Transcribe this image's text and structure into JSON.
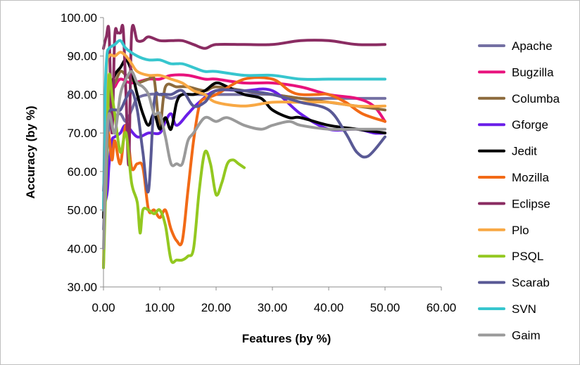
{
  "chart_data": {
    "type": "line",
    "title": "",
    "xlabel": "Features (by %)",
    "ylabel": "Accuracy (by %)",
    "xlim": [
      0,
      60
    ],
    "ylim": [
      30,
      100
    ],
    "xticks": [
      "0.00",
      "10.00",
      "20.00",
      "30.00",
      "40.00",
      "50.00",
      "60.00"
    ],
    "yticks": [
      "30.00",
      "40.00",
      "50.00",
      "60.00",
      "70.00",
      "80.00",
      "90.00",
      "100.00"
    ],
    "grid": false,
    "legend": "right",
    "series": [
      {
        "name": "Apache",
        "color": "#7470a3",
        "points": [
          [
            0,
            45
          ],
          [
            0.5,
            60
          ],
          [
            1,
            72
          ],
          [
            2,
            74
          ],
          [
            3,
            75
          ],
          [
            4,
            73
          ],
          [
            5,
            76
          ],
          [
            6,
            79
          ],
          [
            8,
            80
          ],
          [
            10,
            80
          ],
          [
            12,
            79
          ],
          [
            14,
            80
          ],
          [
            16,
            80
          ],
          [
            18,
            80
          ],
          [
            20,
            80
          ],
          [
            25,
            80
          ],
          [
            30,
            80
          ],
          [
            35,
            79
          ],
          [
            40,
            79
          ],
          [
            45,
            79
          ],
          [
            50,
            79
          ]
        ]
      },
      {
        "name": "Bugzilla",
        "color": "#e8127c",
        "points": [
          [
            0,
            55
          ],
          [
            0.5,
            70
          ],
          [
            1,
            80
          ],
          [
            2,
            82
          ],
          [
            3,
            84
          ],
          [
            5,
            83
          ],
          [
            8,
            84
          ],
          [
            10,
            84
          ],
          [
            12,
            85
          ],
          [
            15,
            85
          ],
          [
            18,
            84
          ],
          [
            20,
            84
          ],
          [
            25,
            83
          ],
          [
            30,
            83
          ],
          [
            35,
            82
          ],
          [
            40,
            80
          ],
          [
            45,
            79
          ],
          [
            48,
            77
          ],
          [
            50,
            73
          ]
        ]
      },
      {
        "name": "Columba",
        "color": "#8c6a3c",
        "points": [
          [
            0,
            50
          ],
          [
            0.5,
            75
          ],
          [
            1,
            82
          ],
          [
            2,
            83
          ],
          [
            3,
            86
          ],
          [
            4,
            85
          ],
          [
            5,
            84
          ],
          [
            6,
            83
          ],
          [
            8,
            84
          ],
          [
            9,
            84
          ],
          [
            10,
            72
          ],
          [
            11,
            82
          ],
          [
            13,
            82
          ],
          [
            15,
            82
          ],
          [
            18,
            81
          ],
          [
            20,
            82
          ],
          [
            25,
            81
          ],
          [
            30,
            80
          ],
          [
            35,
            79
          ],
          [
            40,
            78
          ],
          [
            45,
            77
          ],
          [
            50,
            76
          ]
        ]
      },
      {
        "name": "Gforge",
        "color": "#6a1ee8",
        "points": [
          [
            0,
            50
          ],
          [
            0.3,
            52
          ],
          [
            0.7,
            55
          ],
          [
            1,
            62
          ],
          [
            1.5,
            68
          ],
          [
            2,
            69
          ],
          [
            3,
            70
          ],
          [
            4,
            72
          ],
          [
            6,
            69
          ],
          [
            8,
            70
          ],
          [
            10,
            70
          ],
          [
            11,
            73
          ],
          [
            12,
            75
          ],
          [
            13,
            72
          ],
          [
            15,
            75
          ],
          [
            17,
            78
          ],
          [
            20,
            81
          ],
          [
            25,
            81
          ],
          [
            30,
            81
          ],
          [
            35,
            75
          ],
          [
            40,
            71
          ],
          [
            45,
            71
          ],
          [
            48,
            70
          ],
          [
            50,
            70
          ]
        ]
      },
      {
        "name": "Jedit",
        "color": "#000000",
        "points": [
          [
            0,
            48
          ],
          [
            0.5,
            70
          ],
          [
            1,
            80
          ],
          [
            2,
            85
          ],
          [
            3,
            87
          ],
          [
            4,
            89
          ],
          [
            5,
            86
          ],
          [
            6,
            80
          ],
          [
            7,
            75
          ],
          [
            8,
            72
          ],
          [
            9,
            75
          ],
          [
            10,
            71
          ],
          [
            11,
            74
          ],
          [
            12,
            71
          ],
          [
            13,
            78
          ],
          [
            14,
            80
          ],
          [
            16,
            80
          ],
          [
            18,
            81
          ],
          [
            20,
            83
          ],
          [
            22,
            82
          ],
          [
            25,
            80
          ],
          [
            28,
            79
          ],
          [
            30,
            76
          ],
          [
            33,
            74
          ],
          [
            35,
            74
          ],
          [
            40,
            72
          ],
          [
            45,
            71
          ],
          [
            50,
            70
          ]
        ]
      },
      {
        "name": "Mozilla",
        "color": "#f26a16",
        "points": [
          [
            0,
            35
          ],
          [
            0.3,
            55
          ],
          [
            0.8,
            70
          ],
          [
            1.5,
            63
          ],
          [
            2,
            68
          ],
          [
            3,
            62
          ],
          [
            4,
            72
          ],
          [
            5,
            61
          ],
          [
            6,
            62
          ],
          [
            7,
            61
          ],
          [
            8,
            50
          ],
          [
            9,
            50
          ],
          [
            10,
            48
          ],
          [
            11,
            50
          ],
          [
            12,
            45
          ],
          [
            13,
            42
          ],
          [
            14,
            42
          ],
          [
            15,
            55
          ],
          [
            16,
            68
          ],
          [
            17,
            77
          ],
          [
            18,
            79
          ],
          [
            20,
            80
          ],
          [
            25,
            84
          ],
          [
            30,
            84
          ],
          [
            33,
            81
          ],
          [
            35,
            80
          ],
          [
            38,
            80
          ],
          [
            40,
            80
          ],
          [
            43,
            78
          ],
          [
            46,
            75
          ],
          [
            50,
            73
          ]
        ]
      },
      {
        "name": "Eclipse",
        "color": "#8a2c62",
        "points": [
          [
            0,
            92
          ],
          [
            0.5,
            95
          ],
          [
            1,
            96
          ],
          [
            1.5,
            70
          ],
          [
            2,
            95
          ],
          [
            2.5,
            96
          ],
          [
            3,
            96
          ],
          [
            3.5,
            97
          ],
          [
            4,
            80
          ],
          [
            4.5,
            62
          ],
          [
            5,
            96
          ],
          [
            6,
            94
          ],
          [
            7,
            94
          ],
          [
            8,
            95
          ],
          [
            10,
            94
          ],
          [
            12,
            94
          ],
          [
            14,
            94
          ],
          [
            16,
            93
          ],
          [
            18,
            92
          ],
          [
            20,
            93
          ],
          [
            25,
            93
          ],
          [
            30,
            93
          ],
          [
            35,
            94
          ],
          [
            40,
            94
          ],
          [
            45,
            93
          ],
          [
            50,
            93
          ]
        ]
      },
      {
        "name": "Plo",
        "color": "#f8a844",
        "points": [
          [
            0,
            50
          ],
          [
            0.5,
            85
          ],
          [
            1,
            90
          ],
          [
            2,
            90
          ],
          [
            3,
            91
          ],
          [
            4,
            90
          ],
          [
            5,
            88
          ],
          [
            6,
            86
          ],
          [
            8,
            85
          ],
          [
            10,
            85
          ],
          [
            12,
            84
          ],
          [
            14,
            83
          ],
          [
            16,
            81
          ],
          [
            18,
            80
          ],
          [
            20,
            78
          ],
          [
            25,
            77
          ],
          [
            30,
            78
          ],
          [
            35,
            78
          ],
          [
            40,
            78
          ],
          [
            45,
            77
          ],
          [
            50,
            77
          ]
        ]
      },
      {
        "name": "PSQL",
        "color": "#93c820",
        "points": [
          [
            0,
            35
          ],
          [
            0.3,
            50
          ],
          [
            0.7,
            70
          ],
          [
            1,
            85
          ],
          [
            1.5,
            80
          ],
          [
            2,
            75
          ],
          [
            3,
            65
          ],
          [
            4,
            70
          ],
          [
            5,
            57
          ],
          [
            6,
            52
          ],
          [
            6.5,
            44
          ],
          [
            7,
            50
          ],
          [
            8,
            50
          ],
          [
            9,
            49
          ],
          [
            10,
            50
          ],
          [
            11,
            46
          ],
          [
            12,
            37
          ],
          [
            13,
            37
          ],
          [
            14,
            37
          ],
          [
            15,
            38
          ],
          [
            16,
            40
          ],
          [
            17,
            55
          ],
          [
            18,
            65
          ],
          [
            19,
            62
          ],
          [
            20,
            54
          ],
          [
            21,
            57
          ],
          [
            22,
            62
          ],
          [
            23,
            63
          ],
          [
            24,
            62
          ],
          [
            25,
            61
          ]
        ]
      },
      {
        "name": "Scarab",
        "color": "#595995",
        "points": [
          [
            0,
            50
          ],
          [
            0.5,
            65
          ],
          [
            1,
            75
          ],
          [
            2,
            76
          ],
          [
            3,
            76
          ],
          [
            4,
            79
          ],
          [
            5,
            81
          ],
          [
            6,
            76
          ],
          [
            7,
            65
          ],
          [
            8,
            55
          ],
          [
            9,
            78
          ],
          [
            10,
            80
          ],
          [
            12,
            80
          ],
          [
            14,
            81
          ],
          [
            16,
            77
          ],
          [
            18,
            78
          ],
          [
            20,
            81
          ],
          [
            25,
            81
          ],
          [
            30,
            80
          ],
          [
            35,
            78
          ],
          [
            40,
            76
          ],
          [
            43,
            70
          ],
          [
            45,
            65
          ],
          [
            47,
            64
          ],
          [
            50,
            69
          ]
        ]
      },
      {
        "name": "SVN",
        "color": "#37c6ce",
        "points": [
          [
            0,
            50
          ],
          [
            0.3,
            80
          ],
          [
            0.6,
            90
          ],
          [
            1,
            92
          ],
          [
            2,
            93
          ],
          [
            3,
            94
          ],
          [
            4,
            92
          ],
          [
            6,
            90
          ],
          [
            8,
            89
          ],
          [
            10,
            89
          ],
          [
            12,
            88
          ],
          [
            14,
            88
          ],
          [
            16,
            87
          ],
          [
            18,
            86
          ],
          [
            20,
            86
          ],
          [
            25,
            85
          ],
          [
            30,
            85
          ],
          [
            35,
            84
          ],
          [
            40,
            84
          ],
          [
            45,
            84
          ],
          [
            50,
            84
          ]
        ]
      },
      {
        "name": "Gaim",
        "color": "#9a9a9a",
        "points": [
          [
            0,
            40
          ],
          [
            0.5,
            65
          ],
          [
            1,
            75
          ],
          [
            2,
            70
          ],
          [
            3,
            80
          ],
          [
            4,
            84
          ],
          [
            5,
            86
          ],
          [
            6,
            83
          ],
          [
            7,
            82
          ],
          [
            8,
            80
          ],
          [
            9,
            75
          ],
          [
            10,
            75
          ],
          [
            11,
            69
          ],
          [
            12,
            62
          ],
          [
            13,
            62
          ],
          [
            14,
            62
          ],
          [
            15,
            68
          ],
          [
            16,
            70
          ],
          [
            18,
            74
          ],
          [
            20,
            73
          ],
          [
            22,
            74
          ],
          [
            25,
            72
          ],
          [
            28,
            71
          ],
          [
            30,
            72
          ],
          [
            33,
            73
          ],
          [
            35,
            72
          ],
          [
            40,
            71
          ],
          [
            45,
            71
          ],
          [
            50,
            71
          ]
        ]
      }
    ]
  }
}
